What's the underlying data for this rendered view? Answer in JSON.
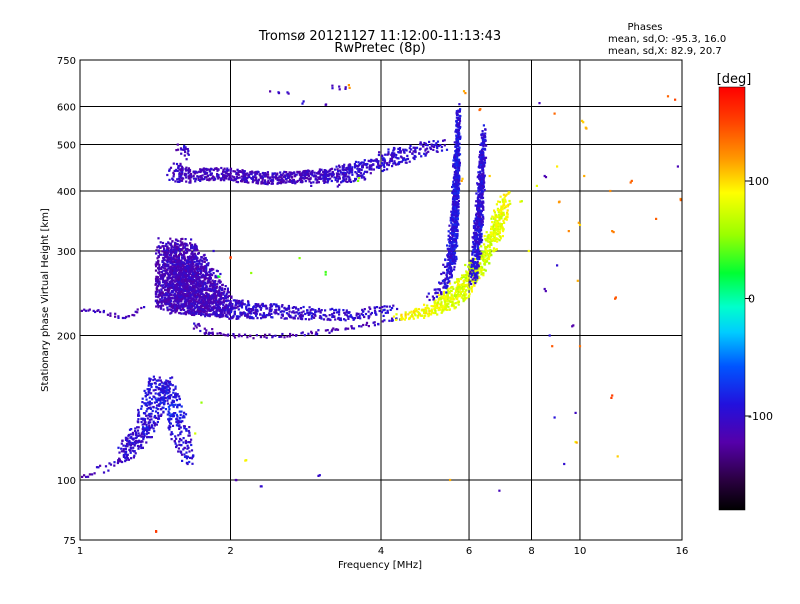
{
  "chart_data": {
    "type": "scatter",
    "title": "Tromsø 20121127 11:12:00-11:13:43",
    "subtitle": "RwPretec (8p)",
    "stats": {
      "heading": "Phases",
      "line1": "mean, sd,O: -95.3, 16.0",
      "line2": "mean, sd,X:  82.9, 20.7"
    },
    "xlabel": "Frequency [MHz]",
    "ylabel": "Stationary phase Virtual Height [km]",
    "x_scale": "log",
    "y_scale": "log",
    "xlim": [
      1,
      16
    ],
    "ylim": [
      75,
      750
    ],
    "x_ticks": [
      1,
      2,
      4,
      6,
      8,
      10,
      16
    ],
    "x_tick_labels": [
      "1",
      "2",
      "4",
      "6",
      "8",
      "10",
      "16"
    ],
    "y_ticks": [
      75,
      100,
      200,
      300,
      400,
      500,
      600,
      750
    ],
    "y_tick_labels": [
      "75",
      "100",
      "200",
      "300",
      "400",
      "500",
      "600",
      "750"
    ],
    "grid": true,
    "colorbar": {
      "label": "[deg]",
      "range": [
        -180,
        180
      ],
      "ticks": [
        100,
        0,
        -100
      ],
      "tick_labels": [
        "100",
        "0",
        "-100"
      ]
    },
    "series": [
      {
        "style": "band",
        "points": [
          [
            1.0,
            102,
            -115,
            0,
            6
          ],
          [
            1.2,
            108,
            -105,
            4,
            10
          ],
          [
            1.25,
            115,
            -100,
            20,
            12
          ],
          [
            1.3,
            122,
            -100,
            20,
            12
          ],
          [
            1.35,
            128,
            -95,
            20,
            12
          ],
          [
            1.38,
            138,
            -95,
            24,
            10
          ],
          [
            1.42,
            148,
            -90,
            26,
            10
          ],
          [
            1.45,
            162,
            -95,
            24,
            8
          ],
          [
            1.5,
            152,
            -90,
            20,
            10
          ],
          [
            1.54,
            140,
            -80,
            20,
            8
          ],
          [
            1.58,
            128,
            -95,
            20,
            8
          ],
          [
            1.62,
            115,
            -100,
            16,
            8
          ],
          [
            1.66,
            108,
            -90,
            12,
            6
          ]
        ]
      },
      {
        "style": "band",
        "points": [
          [
            0.98,
            228,
            -110,
            0,
            4
          ],
          [
            1.05,
            226,
            -110,
            3,
            4
          ],
          [
            1.25,
            218,
            -110,
            4,
            4
          ],
          [
            1.35,
            230,
            -110,
            4,
            3
          ]
        ]
      },
      {
        "style": "band",
        "points": [
          [
            1.5,
            255,
            -115,
            24,
            40
          ],
          [
            1.55,
            270,
            -115,
            40,
            70
          ],
          [
            1.6,
            262,
            -110,
            40,
            70
          ],
          [
            1.68,
            252,
            -110,
            34,
            55
          ],
          [
            1.78,
            245,
            -110,
            30,
            45
          ],
          [
            1.9,
            235,
            -110,
            20,
            30
          ],
          [
            2.0,
            228,
            -105,
            16,
            22
          ],
          [
            2.2,
            226,
            -100,
            14,
            16
          ],
          [
            2.5,
            224,
            -100,
            12,
            14
          ],
          [
            3.0,
            222,
            -100,
            10,
            12
          ],
          [
            3.5,
            220,
            -100,
            10,
            10
          ],
          [
            4.0,
            225,
            -100,
            8,
            10
          ],
          [
            4.3,
            228,
            -95,
            6,
            8
          ]
        ]
      },
      {
        "style": "band",
        "points": [
          [
            1.7,
            210,
            -110,
            10,
            6
          ],
          [
            1.8,
            204,
            -115,
            10,
            5
          ],
          [
            1.95,
            201,
            -120,
            8,
            4
          ],
          [
            2.2,
            199,
            -115,
            6,
            4
          ],
          [
            2.6,
            200,
            -115,
            6,
            4
          ],
          [
            3.0,
            203,
            -110,
            6,
            4
          ],
          [
            3.5,
            208,
            -110,
            6,
            4
          ],
          [
            4.0,
            213,
            -105,
            6,
            4
          ],
          [
            4.4,
            218,
            -100,
            6,
            4
          ]
        ]
      },
      {
        "style": "band",
        "points": [
          [
            4.3,
            218,
            90,
            10,
            6
          ],
          [
            4.8,
            222,
            90,
            14,
            10
          ],
          [
            5.2,
            230,
            85,
            16,
            14
          ],
          [
            5.6,
            240,
            80,
            20,
            20
          ],
          [
            5.9,
            258,
            80,
            16,
            20
          ],
          [
            6.2,
            275,
            75,
            14,
            22
          ],
          [
            6.5,
            300,
            75,
            10,
            24
          ],
          [
            6.8,
            330,
            80,
            10,
            30
          ],
          [
            7.0,
            360,
            85,
            8,
            30
          ],
          [
            7.2,
            385,
            90,
            6,
            20
          ]
        ]
      },
      {
        "style": "band",
        "points": [
          [
            5.0,
            240,
            -100,
            6,
            8
          ],
          [
            5.3,
            250,
            -100,
            8,
            12
          ],
          [
            5.5,
            280,
            -95,
            8,
            30
          ],
          [
            5.6,
            330,
            -90,
            6,
            50
          ],
          [
            5.65,
            400,
            -90,
            6,
            60
          ],
          [
            5.7,
            480,
            -90,
            4,
            60
          ],
          [
            5.72,
            560,
            -95,
            4,
            40
          ]
        ]
      },
      {
        "style": "band",
        "points": [
          [
            6.1,
            260,
            -100,
            6,
            14
          ],
          [
            6.2,
            300,
            -90,
            8,
            30
          ],
          [
            6.3,
            360,
            -95,
            8,
            40
          ],
          [
            6.35,
            420,
            -100,
            6,
            40
          ],
          [
            6.4,
            480,
            -95,
            4,
            40
          ],
          [
            6.45,
            530,
            -95,
            4,
            30
          ]
        ]
      },
      {
        "style": "band",
        "points": [
          [
            1.55,
            440,
            -105,
            16,
            20
          ],
          [
            1.65,
            430,
            -110,
            16,
            14
          ],
          [
            1.9,
            435,
            -110,
            16,
            12
          ],
          [
            2.1,
            430,
            -110,
            20,
            12
          ],
          [
            2.4,
            425,
            -110,
            20,
            12
          ],
          [
            2.8,
            428,
            -110,
            20,
            12
          ],
          [
            3.2,
            430,
            -105,
            20,
            14
          ],
          [
            3.6,
            440,
            -100,
            14,
            20
          ],
          [
            3.8,
            450,
            -105,
            10,
            14
          ],
          [
            4.2,
            470,
            -100,
            10,
            20
          ],
          [
            4.6,
            480,
            -100,
            8,
            16
          ],
          [
            5.0,
            490,
            -100,
            8,
            14
          ],
          [
            5.4,
            500,
            -100,
            6,
            12
          ]
        ]
      },
      {
        "style": "band",
        "points": [
          [
            1.57,
            490,
            -110,
            4,
            12
          ],
          [
            1.62,
            500,
            -100,
            4,
            14
          ],
          [
            1.65,
            470,
            -100,
            4,
            12
          ]
        ]
      },
      {
        "style": "sparse",
        "points": [
          [
            2.4,
            645,
            -110
          ],
          [
            2.5,
            640,
            -110
          ],
          [
            2.6,
            642,
            -100
          ],
          [
            3.2,
            655,
            -110
          ],
          [
            3.3,
            660,
            -110
          ],
          [
            3.4,
            658,
            -120
          ],
          [
            3.45,
            665,
            130
          ],
          [
            2.8,
            615,
            -100
          ],
          [
            3.1,
            605,
            -110
          ],
          [
            2.0,
            290,
            150
          ],
          [
            1.85,
            300,
            -110
          ],
          [
            2.2,
            270,
            40
          ],
          [
            1.9,
            265,
            30
          ],
          [
            2.75,
            290,
            40
          ],
          [
            3.1,
            268,
            40
          ],
          [
            2.15,
            110,
            80
          ],
          [
            2.05,
            100,
            -110
          ],
          [
            3.0,
            102,
            -100
          ],
          [
            2.3,
            97,
            -110
          ],
          [
            1.42,
            78,
            160
          ],
          [
            1.75,
            145,
            60
          ],
          [
            1.7,
            125,
            60
          ],
          [
            5.5,
            100,
            100
          ],
          [
            6.9,
            95,
            -120
          ],
          [
            8.3,
            610,
            -110
          ],
          [
            8.5,
            430,
            -110
          ],
          [
            8.5,
            250,
            -110
          ],
          [
            8.7,
            200,
            -100
          ],
          [
            8.9,
            580,
            130
          ],
          [
            9.0,
            450,
            110
          ],
          [
            9.1,
            380,
            120
          ],
          [
            9.0,
            280,
            -110
          ],
          [
            8.8,
            190,
            130
          ],
          [
            8.9,
            135,
            -100
          ],
          [
            9.3,
            108,
            -100
          ],
          [
            9.5,
            330,
            120
          ],
          [
            9.7,
            210,
            -110
          ],
          [
            9.8,
            120,
            100
          ],
          [
            10.1,
            560,
            110
          ],
          [
            10.3,
            540,
            120
          ],
          [
            10.2,
            430,
            100
          ],
          [
            10.0,
            340,
            110
          ],
          [
            9.9,
            260,
            120
          ],
          [
            10.0,
            190,
            120
          ],
          [
            9.8,
            138,
            -110
          ],
          [
            11.5,
            400,
            130
          ],
          [
            11.6,
            330,
            140
          ],
          [
            11.8,
            240,
            140
          ],
          [
            11.6,
            150,
            150
          ],
          [
            11.9,
            112,
            100
          ],
          [
            12.7,
            420,
            130
          ],
          [
            14.2,
            350,
            130
          ],
          [
            15.0,
            630,
            150
          ],
          [
            15.5,
            620,
            150
          ],
          [
            15.7,
            450,
            -110
          ],
          [
            15.9,
            385,
            130
          ],
          [
            16.0,
            195,
            150
          ],
          [
            7.6,
            380,
            80
          ],
          [
            7.9,
            300,
            100
          ],
          [
            8.2,
            410,
            90
          ],
          [
            5.9,
            640,
            110
          ],
          [
            6.3,
            590,
            130
          ],
          [
            6.6,
            430,
            100
          ],
          [
            5.8,
            420,
            120
          ],
          [
            3.6,
            420,
            60
          ],
          [
            3.3,
            412,
            -110
          ],
          [
            4.8,
            505,
            -100
          ],
          [
            2.9,
            410,
            -120
          ]
        ]
      }
    ]
  }
}
